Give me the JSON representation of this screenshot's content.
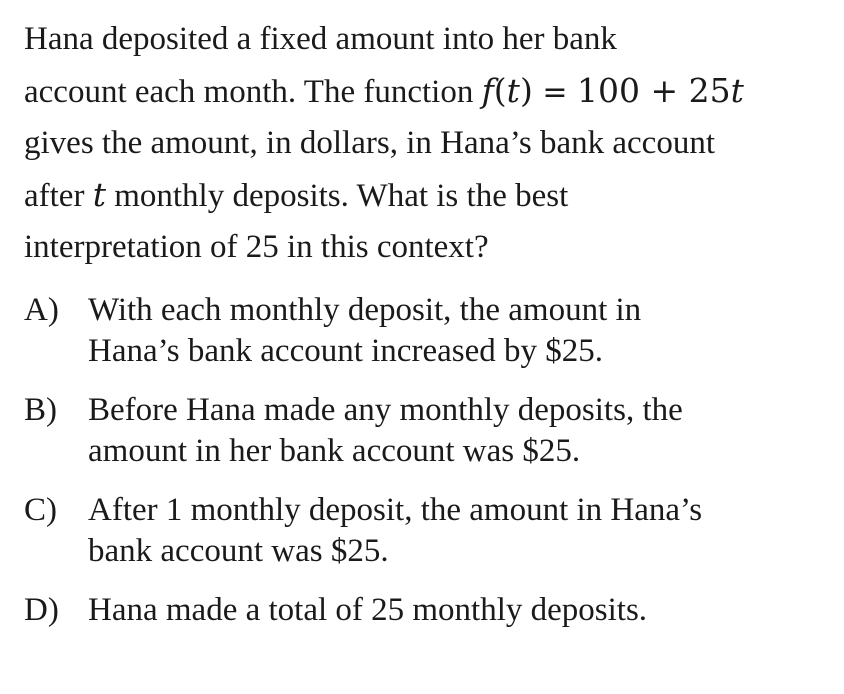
{
  "question": {
    "line1": "Hana deposited a fixed amount into her bank",
    "line2_pre": "account each month. The function ",
    "func_name": "f",
    "func_open": "(",
    "func_var": "t",
    "func_close": ")",
    "equals": " = ",
    "expr_plus": "100 + 25",
    "expr_var": "t",
    "line3": "gives the amount, in dollars, in Hana’s bank account",
    "line4_pre": "after ",
    "line4_var": "t",
    "line4_post": " monthly deposits. What is the best",
    "line5": "interpretation of 25 in this context?"
  },
  "choices": [
    {
      "letter": "A)",
      "lines": [
        "With each monthly deposit, the amount in",
        "Hana’s bank account increased by $25."
      ]
    },
    {
      "letter": "B)",
      "lines": [
        "Before Hana made any monthly deposits, the",
        "amount in her bank account was $25."
      ]
    },
    {
      "letter": "C)",
      "lines": [
        "After 1 monthly deposit, the amount in Hana’s",
        "bank account was $25."
      ]
    },
    {
      "letter": "D)",
      "lines": [
        "Hana made a total of 25 monthly deposits."
      ]
    }
  ]
}
